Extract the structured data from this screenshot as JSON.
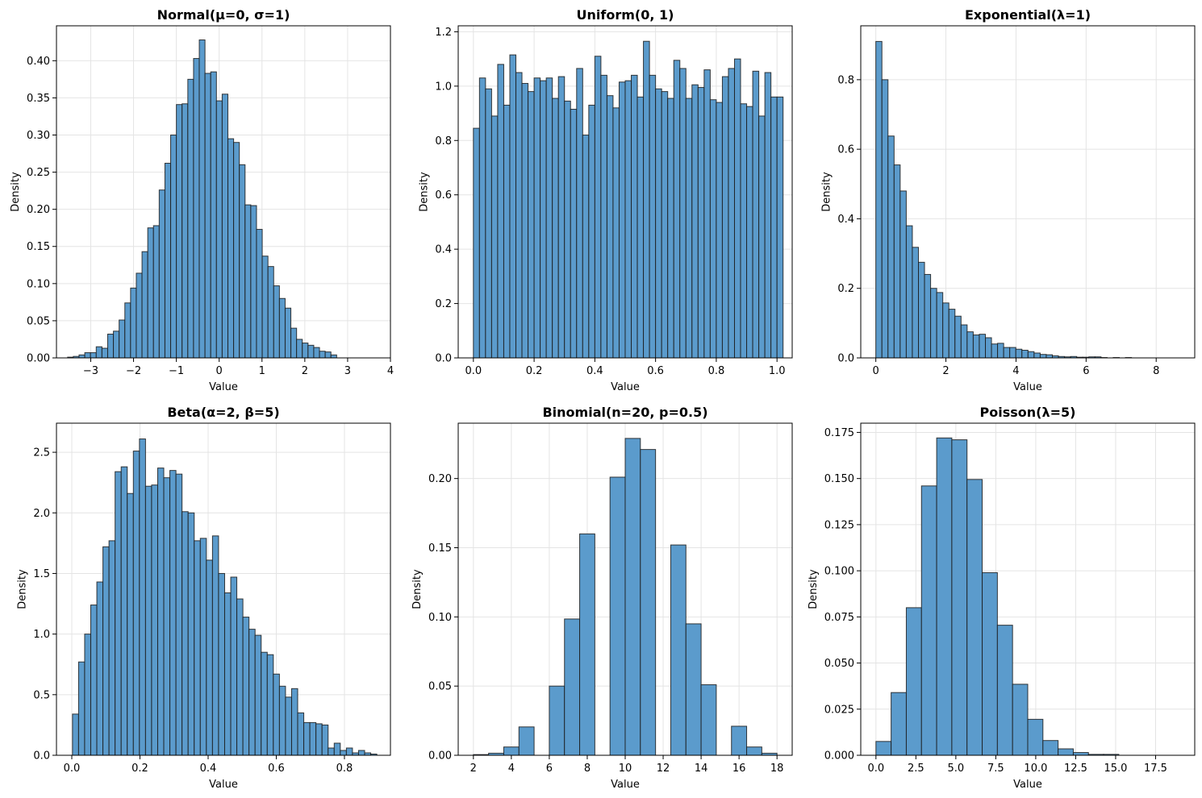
{
  "chart_data": [
    {
      "type": "bar",
      "title": "Normal(μ=0, σ=1)",
      "xlabel": "Value",
      "ylabel": "Density",
      "xlim": [
        -3.8,
        4.0
      ],
      "ylim": [
        0,
        0.447
      ],
      "xticks": [
        -3,
        -2,
        -1,
        0,
        1,
        2,
        3,
        4
      ],
      "xtick_labels": [
        "−3",
        "−2",
        "−1",
        "0",
        "1",
        "2",
        "3",
        "4"
      ],
      "yticks": [
        0,
        0.05,
        0.1,
        0.15,
        0.2,
        0.25,
        0.3,
        0.35,
        0.4
      ],
      "ytick_labels": [
        "0.00",
        "0.05",
        "0.10",
        "0.15",
        "0.20",
        "0.25",
        "0.30",
        "0.35",
        "0.40"
      ],
      "grid": true,
      "bins": {
        "start": -3.54,
        "width": 0.1337
      },
      "values": [
        0.001,
        0.002,
        0.004,
        0.007,
        0.007,
        0.015,
        0.013,
        0.032,
        0.036,
        0.051,
        0.074,
        0.094,
        0.114,
        0.143,
        0.175,
        0.178,
        0.226,
        0.262,
        0.3,
        0.341,
        0.342,
        0.375,
        0.403,
        0.428,
        0.383,
        0.385,
        0.346,
        0.355,
        0.295,
        0.29,
        0.26,
        0.206,
        0.205,
        0.173,
        0.137,
        0.123,
        0.097,
        0.08,
        0.067,
        0.04,
        0.025,
        0.02,
        0.017,
        0.014,
        0.009,
        0.008,
        0.004
      ]
    },
    {
      "type": "bar",
      "title": "Uniform(0, 1)",
      "xlabel": "Value",
      "ylabel": "Density",
      "xlim": [
        -0.05,
        1.05
      ],
      "ylim": [
        0,
        1.222
      ],
      "xticks": [
        0,
        0.2,
        0.4,
        0.6,
        0.8,
        1.0
      ],
      "xtick_labels": [
        "0.0",
        "0.2",
        "0.4",
        "0.6",
        "0.8",
        "1.0"
      ],
      "yticks": [
        0,
        0.2,
        0.4,
        0.6,
        0.8,
        1.0,
        1.2
      ],
      "ytick_labels": [
        "0.0",
        "0.2",
        "0.4",
        "0.6",
        "0.8",
        "1.0",
        "1.2"
      ],
      "grid": true,
      "bins": {
        "start": 0.0,
        "width": 0.02
      },
      "values": [
        0.845,
        1.03,
        0.99,
        0.89,
        1.08,
        0.93,
        1.115,
        1.05,
        1.01,
        0.98,
        1.03,
        1.02,
        1.03,
        0.955,
        1.035,
        0.945,
        0.915,
        1.065,
        0.82,
        0.93,
        1.11,
        1.04,
        0.965,
        0.92,
        1.015,
        1.02,
        1.04,
        0.96,
        1.165,
        1.04,
        0.99,
        0.98,
        0.955,
        1.095,
        1.065,
        0.955,
        1.005,
        0.995,
        1.06,
        0.95,
        0.94,
        1.035,
        1.065,
        1.1,
        0.935,
        0.925,
        1.055,
        0.89,
        1.05,
        0.96,
        0.96
      ]
    },
    {
      "type": "bar",
      "title": "Exponential(λ=1)",
      "xlabel": "Value",
      "ylabel": "Density",
      "xlim": [
        -0.43,
        9.1
      ],
      "ylim": [
        0,
        0.955
      ],
      "xticks": [
        0,
        2,
        4,
        6,
        8
      ],
      "xtick_labels": [
        "0",
        "2",
        "4",
        "6",
        "8"
      ],
      "yticks": [
        0,
        0.2,
        0.4,
        0.6,
        0.8
      ],
      "ytick_labels": [
        "0.0",
        "0.2",
        "0.4",
        "0.6",
        "0.8"
      ],
      "grid": true,
      "bins": {
        "start": 0.0,
        "width": 0.1737
      },
      "values": [
        0.91,
        0.8,
        0.638,
        0.555,
        0.48,
        0.38,
        0.318,
        0.275,
        0.24,
        0.2,
        0.188,
        0.158,
        0.14,
        0.12,
        0.095,
        0.075,
        0.066,
        0.068,
        0.058,
        0.04,
        0.042,
        0.03,
        0.03,
        0.025,
        0.022,
        0.018,
        0.014,
        0.01,
        0.009,
        0.006,
        0.004,
        0.003,
        0.004,
        0.002,
        0.002,
        0.003,
        0.003,
        0.001,
        0.0,
        0.001,
        0.0,
        0.001,
        0.0,
        0.0,
        0.0,
        0.0,
        0.0,
        0.0,
        0.0,
        0.0
      ]
    },
    {
      "type": "bar",
      "title": "Beta(α=2, β=5)",
      "xlabel": "Value",
      "ylabel": "Density",
      "xlim": [
        -0.045,
        0.935
      ],
      "ylim": [
        0,
        2.74
      ],
      "xticks": [
        0,
        0.2,
        0.4,
        0.6,
        0.8
      ],
      "xtick_labels": [
        "0.0",
        "0.2",
        "0.4",
        "0.6",
        "0.8"
      ],
      "yticks": [
        0,
        0.5,
        1.0,
        1.5,
        2.0,
        2.5
      ],
      "ytick_labels": [
        "0.0",
        "0.5",
        "1.0",
        "1.5",
        "2.0",
        "2.5"
      ],
      "grid": true,
      "bins": {
        "start": 0.002,
        "width": 0.01786
      },
      "values": [
        0.34,
        0.77,
        1.0,
        1.24,
        1.43,
        1.72,
        1.77,
        2.34,
        2.38,
        2.16,
        2.51,
        2.61,
        2.22,
        2.23,
        2.37,
        2.29,
        2.35,
        2.32,
        2.01,
        2.0,
        1.77,
        1.79,
        1.61,
        1.81,
        1.5,
        1.34,
        1.47,
        1.29,
        1.14,
        1.04,
        0.99,
        0.85,
        0.83,
        0.67,
        0.57,
        0.48,
        0.55,
        0.35,
        0.27,
        0.27,
        0.26,
        0.25,
        0.06,
        0.1,
        0.04,
        0.06,
        0.02,
        0.04,
        0.02,
        0.01
      ]
    },
    {
      "type": "bar",
      "title": "Binomial(n=20, p=0.5)",
      "xlabel": "Value",
      "ylabel": "Density",
      "xlim": [
        1.2,
        18.8
      ],
      "ylim": [
        0,
        0.24
      ],
      "xticks": [
        2,
        4,
        6,
        8,
        10,
        12,
        14,
        16,
        18
      ],
      "xtick_labels": [
        "2",
        "4",
        "6",
        "8",
        "10",
        "12",
        "14",
        "16",
        "18"
      ],
      "yticks": [
        0,
        0.05,
        0.1,
        0.15,
        0.2
      ],
      "ytick_labels": [
        "0.00",
        "0.05",
        "0.10",
        "0.15",
        "0.20"
      ],
      "grid": true,
      "bins": {
        "start": 2.0,
        "width": 0.8
      },
      "values": [
        0.0005,
        0.0015,
        0.006,
        0.0205,
        0.0,
        0.05,
        0.0985,
        0.16,
        0.0,
        0.201,
        0.229,
        0.221,
        0.0,
        0.152,
        0.095,
        0.051,
        0.0,
        0.021,
        0.006,
        0.0015
      ]
    },
    {
      "type": "bar",
      "title": "Poisson(λ=5)",
      "xlabel": "Value",
      "ylabel": "Density",
      "xlim": [
        -0.95,
        19.95
      ],
      "ylim": [
        0,
        0.18
      ],
      "xticks": [
        0,
        2.5,
        5,
        7.5,
        10,
        12.5,
        15,
        17.5
      ],
      "xtick_labels": [
        "0.0",
        "2.5",
        "5.0",
        "7.5",
        "10.0",
        "12.5",
        "15.0",
        "17.5"
      ],
      "yticks": [
        0,
        0.025,
        0.05,
        0.075,
        0.1,
        0.125,
        0.15,
        0.175
      ],
      "ytick_labels": [
        "0.000",
        "0.025",
        "0.050",
        "0.075",
        "0.100",
        "0.125",
        "0.150",
        "0.175"
      ],
      "grid": true,
      "bins": {
        "start": 0.0,
        "width": 0.95
      },
      "values": [
        0.0075,
        0.034,
        0.08,
        0.146,
        0.172,
        0.171,
        0.1495,
        0.099,
        0.0705,
        0.0385,
        0.0195,
        0.008,
        0.0035,
        0.0015,
        0.0005,
        0.0005,
        0.0,
        0.0,
        0.0,
        0.0
      ]
    }
  ]
}
